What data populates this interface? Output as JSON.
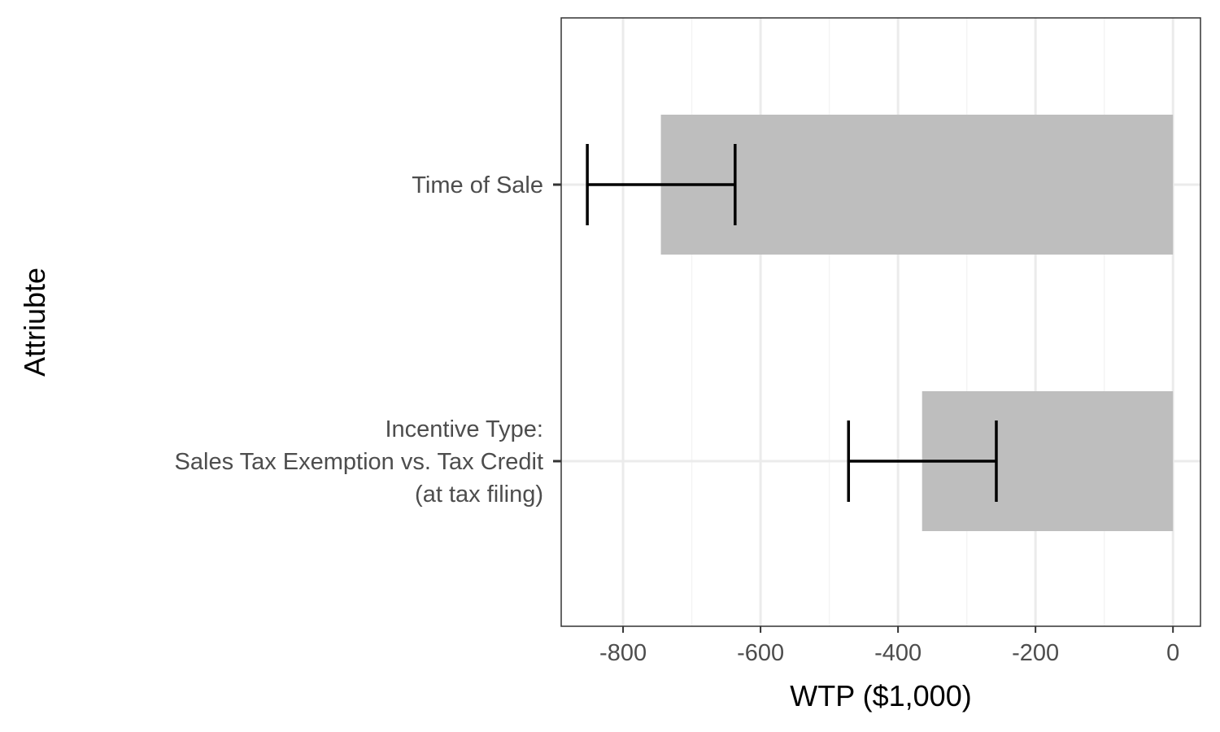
{
  "chart_data": {
    "type": "bar",
    "orientation": "horizontal",
    "xlabel": "WTP ($1,000)",
    "ylabel": "Attriubte",
    "xlim": [
      -890,
      40
    ],
    "xticks": [
      -800,
      -600,
      -400,
      -200,
      0
    ],
    "xtick_labels": [
      "-800",
      "-600",
      "-400",
      "-200",
      "0"
    ],
    "xminor": [
      -700,
      -500,
      -300,
      -100
    ],
    "grid": true,
    "categories": [
      {
        "label_lines": [
          "Time of Sale"
        ],
        "value": -745,
        "ci_low": -852,
        "ci_high": -637
      },
      {
        "label_lines": [
          "Incentive Type:",
          "Sales Tax Exemption vs. Tax Credit",
          "(at tax filing)"
        ],
        "value": -365,
        "ci_low": -472,
        "ci_high": -257
      }
    ],
    "colors": {
      "bar": "#bebebe",
      "errorbar": "#000000",
      "grid_major": "#ebebeb",
      "grid_minor": "#f4f4f4",
      "panel_border": "#333333"
    }
  }
}
